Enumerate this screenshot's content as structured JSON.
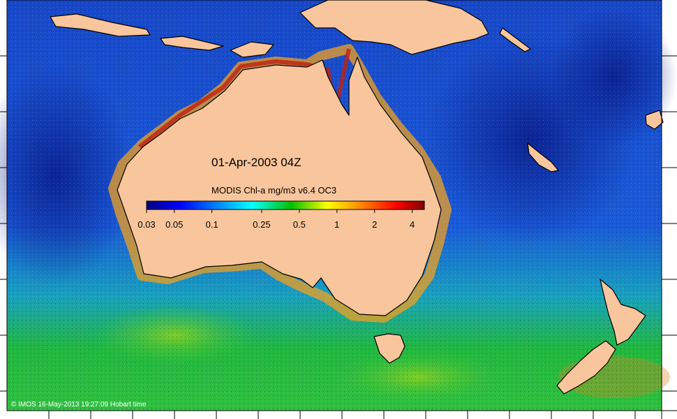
{
  "date_label": "01-Apr-2003 04Z",
  "colorbar": {
    "title": "MODIS Chl-a mg/m3 v6.4 OC3",
    "ticks": [
      "0.03",
      "0.05",
      "0.1",
      "0.25",
      "0.5",
      "1",
      "2",
      "4"
    ],
    "tick_values": [
      0.03,
      0.05,
      0.1,
      0.25,
      0.5,
      1,
      2,
      4
    ],
    "range": [
      0.03,
      5
    ],
    "scale": "log",
    "colors": [
      "#00007f",
      "#0000ff",
      "#0080ff",
      "#00ffff",
      "#00c000",
      "#ffff00",
      "#ff8000",
      "#ff0000",
      "#7f0000"
    ]
  },
  "credit": "© IMOS 16-May-2013 19:27:09 Hobart time",
  "colors": {
    "land": "#f8c59c",
    "ocean_open": "#1840c0",
    "ocean_oligotrophic": "#0a1e8c",
    "coastal_high": "#e06010",
    "southern_ocean": "#28b040"
  }
}
